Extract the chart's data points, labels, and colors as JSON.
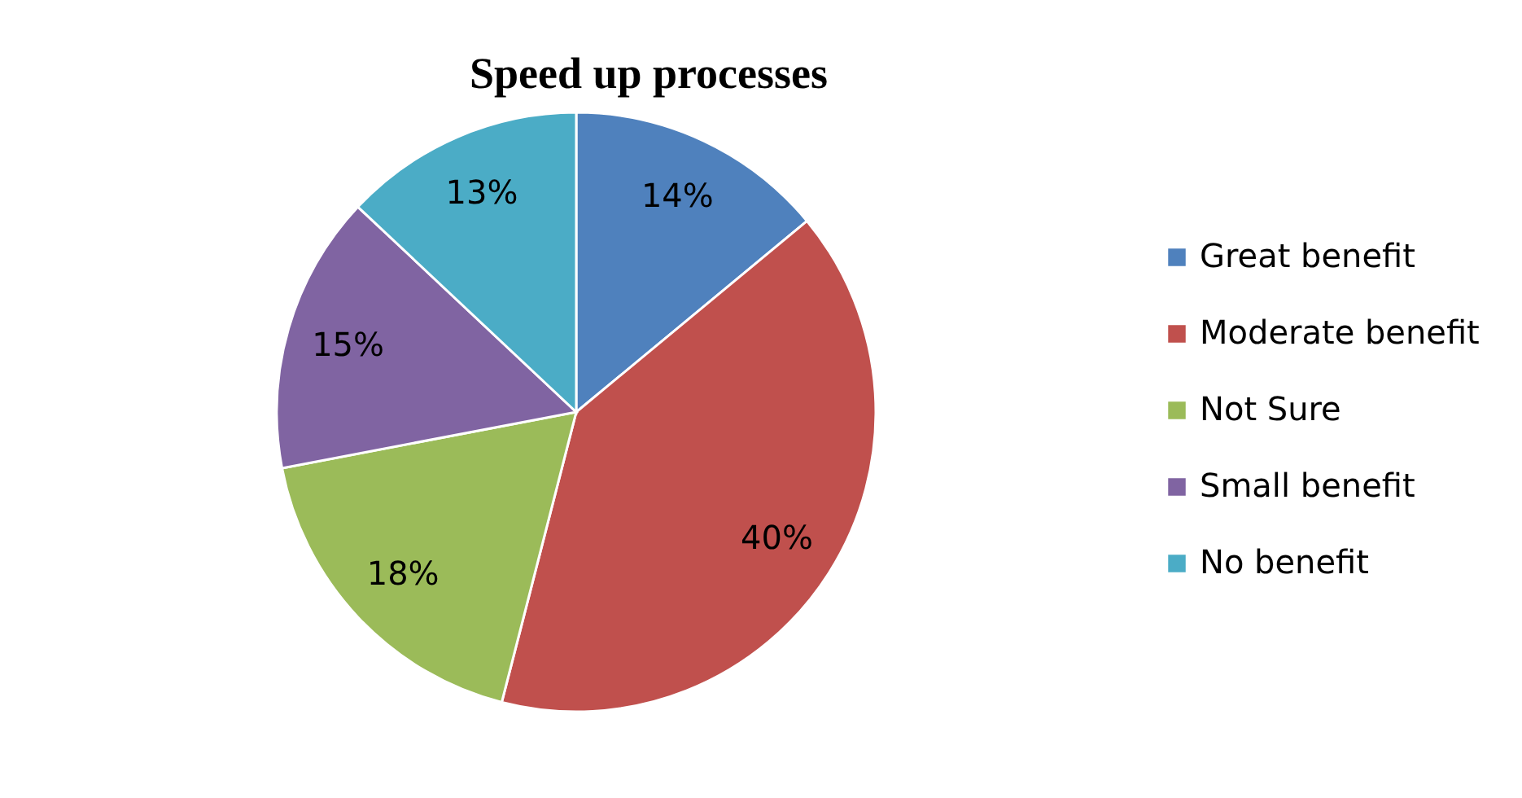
{
  "chart_data": {
    "type": "pie",
    "title": "Speed up processes",
    "categories": [
      "Great benefit",
      "Moderate benefit",
      "Not Sure",
      "Small benefit",
      "No benefit"
    ],
    "values": [
      14,
      40,
      18,
      15,
      13
    ],
    "value_labels": [
      "14%",
      "40%",
      "18%",
      "15%",
      "13%"
    ],
    "colors": [
      "#4f81bd",
      "#c0504d",
      "#9bbb59",
      "#8064a2",
      "#4bacc6"
    ],
    "legend": "right"
  }
}
